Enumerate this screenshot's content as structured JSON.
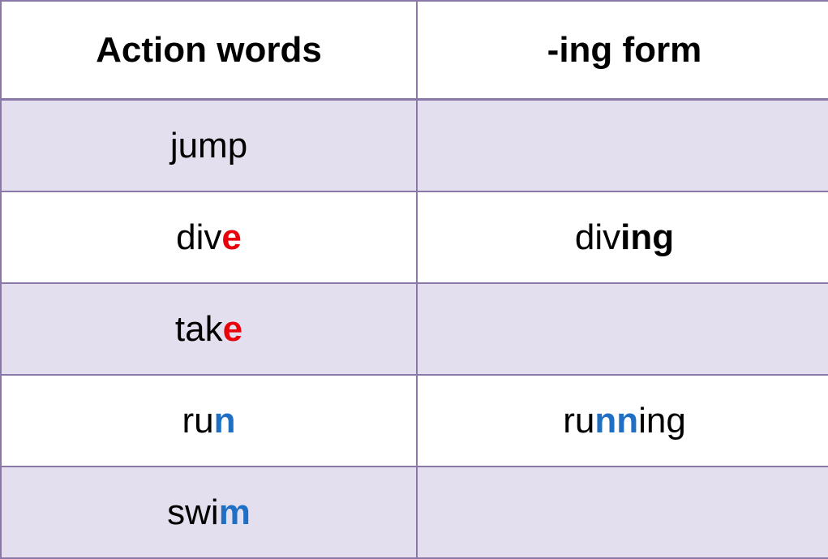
{
  "headers": {
    "action_words": "Action words",
    "ing_form": "-ing form"
  },
  "colors": {
    "border": "#8a78a8",
    "shaded_row": "#e4dfee",
    "highlight_red": "#e8000b",
    "highlight_blue": "#1f6fc5"
  },
  "rows": [
    {
      "word": {
        "base": "jump",
        "highlight": "",
        "highlight_color": ""
      },
      "ing": {
        "prefix": "",
        "mid": "",
        "suffix": ""
      }
    },
    {
      "word": {
        "base": "div",
        "highlight": "e",
        "highlight_color": "red"
      },
      "ing": {
        "prefix": "div",
        "mid": "",
        "suffix": "ing",
        "suffix_style": "bold"
      }
    },
    {
      "word": {
        "base": "tak",
        "highlight": "e",
        "highlight_color": "red"
      },
      "ing": {
        "prefix": "",
        "mid": "",
        "suffix": ""
      }
    },
    {
      "word": {
        "base": "ru",
        "highlight": "n",
        "highlight_color": "blue"
      },
      "ing": {
        "prefix": "ru",
        "mid": "nn",
        "suffix": "ing",
        "mid_style": "blue"
      }
    },
    {
      "word": {
        "base": "swi",
        "highlight": "m",
        "highlight_color": "blue"
      },
      "ing": {
        "prefix": "",
        "mid": "",
        "suffix": ""
      }
    }
  ]
}
